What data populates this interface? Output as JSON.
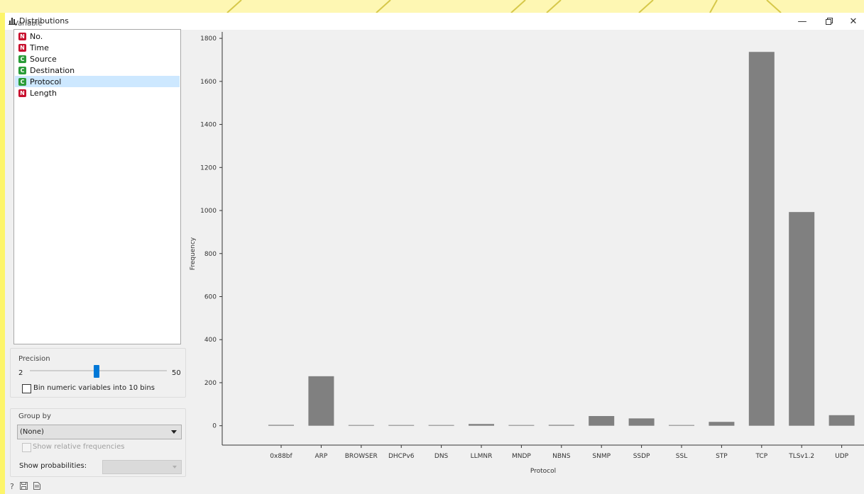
{
  "window": {
    "title": "Distributions",
    "icon": "histogram-icon",
    "controls": [
      "minimize-icon",
      "restore-icon",
      "close-icon"
    ]
  },
  "variable_panel": {
    "label": "Variable",
    "items": [
      {
        "type": "N",
        "name": "No.",
        "selected": false
      },
      {
        "type": "N",
        "name": "Time",
        "selected": false
      },
      {
        "type": "C",
        "name": "Source",
        "selected": false
      },
      {
        "type": "C",
        "name": "Destination",
        "selected": false
      },
      {
        "type": "C",
        "name": "Protocol",
        "selected": true
      },
      {
        "type": "N",
        "name": "Length",
        "selected": false
      }
    ]
  },
  "precision": {
    "label": "Precision",
    "min": "2",
    "max": "50",
    "bin_checkbox_label": "Bin numeric variables into 10 bins",
    "bin_checked": false
  },
  "group_by": {
    "label": "Group by",
    "selected": "(None)",
    "relative_freq_label": "Show relative frequencies",
    "relative_freq_checked": false,
    "show_probabilities_label": "Show probabilities:"
  },
  "bottom_icons": [
    "help-icon",
    "save-icon",
    "report-icon"
  ],
  "colors": {
    "bar": "#808080",
    "selected_row": "#cde8ff",
    "badge_numeric": "#c8102e",
    "badge_categorical": "#2a9c38",
    "slider_handle": "#0078d7"
  },
  "chart_data": {
    "type": "bar",
    "categories": [
      "0x88bf",
      "ARP",
      "BROWSER",
      "DHCPv6",
      "DNS",
      "LLMNR",
      "MNDP",
      "NBNS",
      "SNMP",
      "SSDP",
      "SSL",
      "STP",
      "TCP",
      "TLSv1.2",
      "UDP"
    ],
    "values": [
      4,
      230,
      2,
      1,
      3,
      8,
      1,
      4,
      45,
      34,
      3,
      18,
      1737,
      993,
      49
    ],
    "xlabel": "Protocol",
    "ylabel": "Frequency",
    "yticks": [
      0,
      200,
      400,
      600,
      800,
      1000,
      1200,
      1400,
      1600,
      1800
    ],
    "ylim": [
      -90,
      1830
    ],
    "grid": false,
    "legend": "none"
  }
}
